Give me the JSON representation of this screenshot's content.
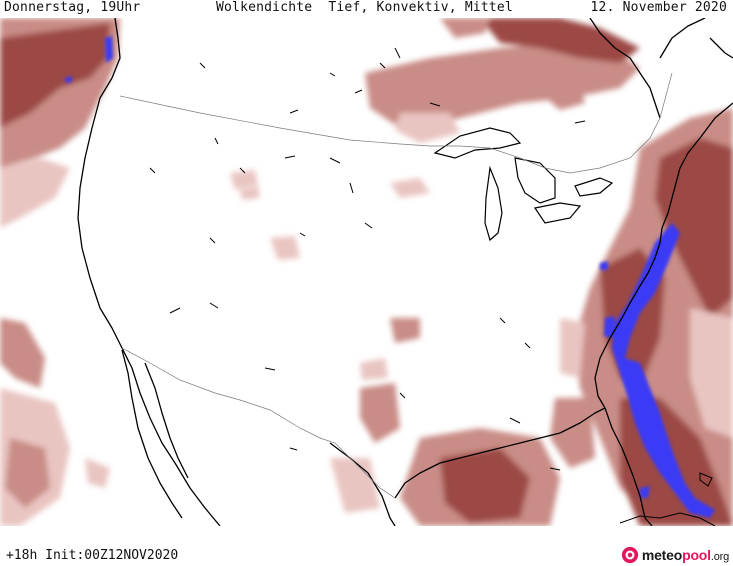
{
  "header": {
    "day_time": "Donnerstag, 19Uhr",
    "product": "Wolkendichte  Tief, Konvektiv, Mittel",
    "date": "12. November 2020"
  },
  "footer": {
    "run_info": "+18h Init:00Z12NOV2020",
    "brand": {
      "name_part1": "meteo",
      "name_part2": "pool",
      "tld": ".org"
    }
  },
  "map": {
    "region": "North America",
    "legend_colors": {
      "low": "#e9c5c1",
      "medium": "#c98c86",
      "high": "#9c4a45",
      "max": "#3a3af5",
      "coastline": "#000000",
      "border": "#7a7a7a"
    }
  }
}
